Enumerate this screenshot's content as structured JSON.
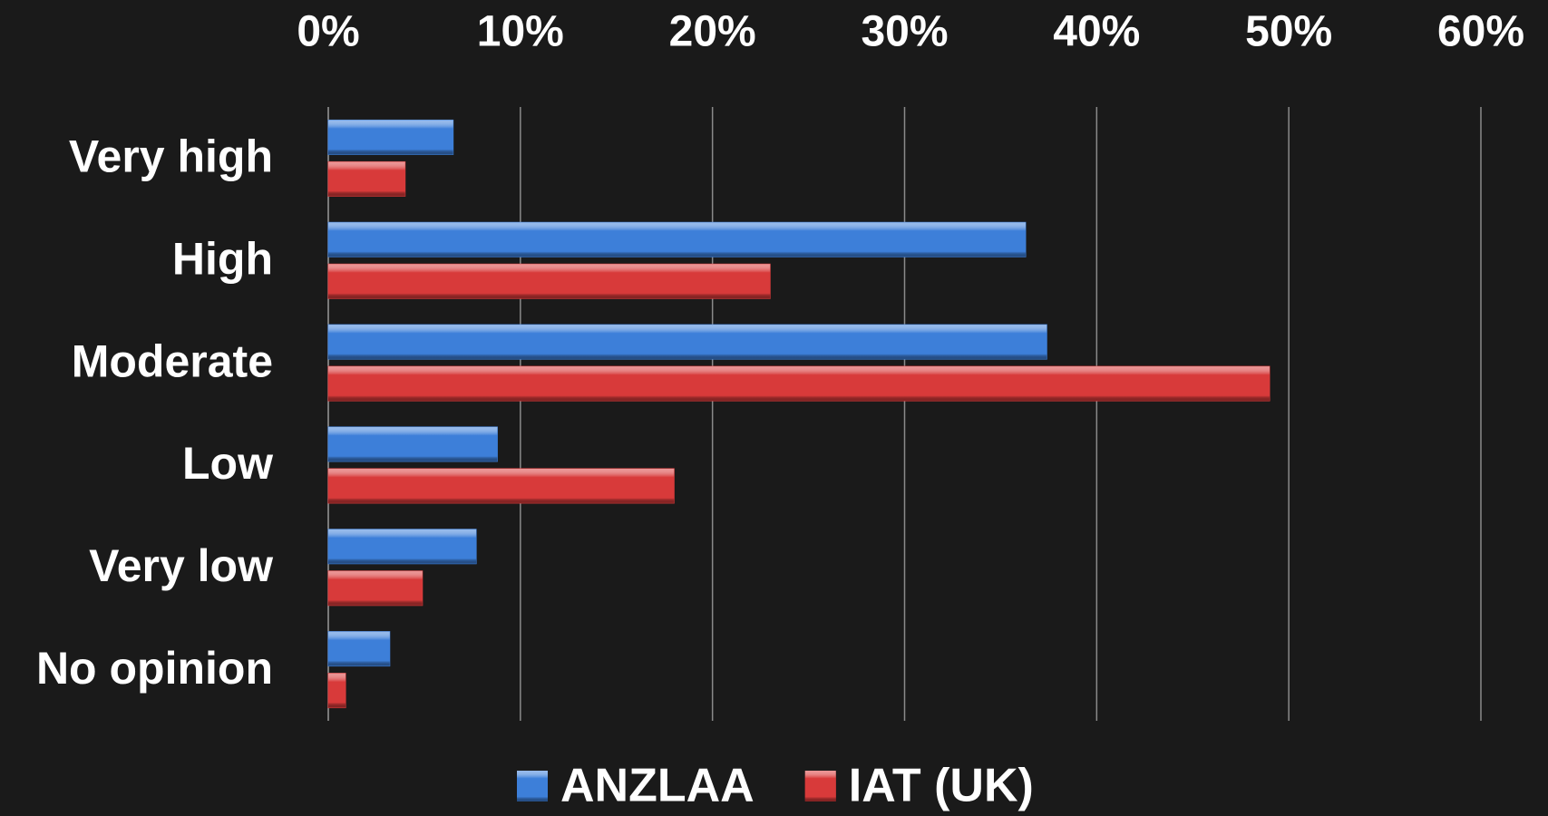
{
  "chart_data": {
    "type": "bar",
    "orientation": "horizontal",
    "categories": [
      "Very high",
      "High",
      "Moderate",
      "Low",
      "Very low",
      "No opinion"
    ],
    "series": [
      {
        "name": "ANZLAA",
        "color": "#3d7fd9",
        "values": [
          6.5,
          36.3,
          37.4,
          8.8,
          7.7,
          3.2
        ]
      },
      {
        "name": "IAT (UK)",
        "color": "#d83a3a",
        "values": [
          4.0,
          23.0,
          49.0,
          18.0,
          4.9,
          0.9
        ]
      }
    ],
    "xlim": [
      0,
      60
    ],
    "xticks": [
      {
        "value": 0,
        "label": "0%"
      },
      {
        "value": 10,
        "label": "10%"
      },
      {
        "value": 20,
        "label": "20%"
      },
      {
        "value": 30,
        "label": "30%"
      },
      {
        "value": 40,
        "label": "40%"
      },
      {
        "value": 50,
        "label": "50%"
      },
      {
        "value": 60,
        "label": "60%"
      }
    ],
    "grid": true,
    "legend": "bottom"
  }
}
